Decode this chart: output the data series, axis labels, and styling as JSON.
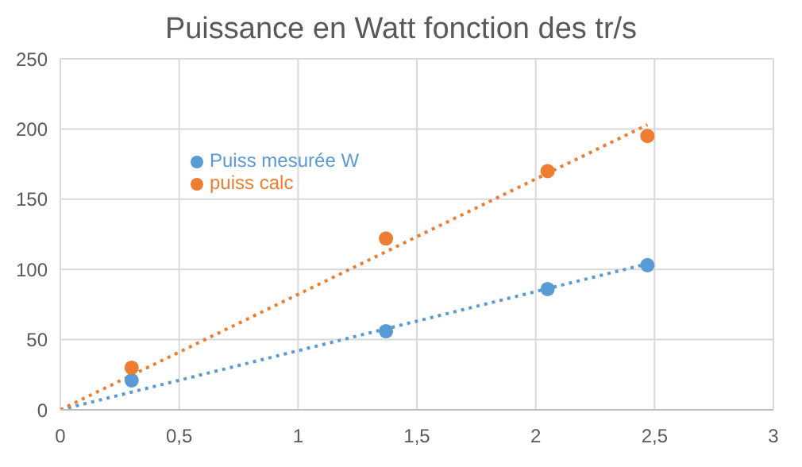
{
  "chart_data": {
    "type": "scatter",
    "title": "Puissance en Watt fonction des tr/s",
    "xlim": [
      0,
      3
    ],
    "xticks": [
      0,
      {
        "value": 0.5,
        "label": "0,5"
      },
      1,
      {
        "value": 1.5,
        "label": "1,5"
      },
      2,
      {
        "value": 2.5,
        "label": "2,5"
      },
      3
    ],
    "ylim": [
      0,
      250
    ],
    "yticks": [
      0,
      50,
      100,
      150,
      200,
      250
    ],
    "grid": true,
    "legend": "top left",
    "series": [
      {
        "name": "Puiss mesurée W",
        "color": "#5b9bd5",
        "marker": "circle",
        "x": [
          0.3,
          1.37,
          2.05,
          2.47
        ],
        "values": [
          21,
          56,
          86,
          103
        ]
      },
      {
        "name": "puiss calc",
        "color": "#ed7d31",
        "marker": "circle",
        "x": [
          0.3,
          1.37,
          2.05,
          2.47
        ],
        "values": [
          30,
          122,
          170,
          195
        ]
      },
      {
        "type": "line",
        "color": "#5b9bd5",
        "line_style": "dotted",
        "marker": "none",
        "x": [
          0,
          2.47
        ],
        "values": [
          0,
          104
        ]
      },
      {
        "type": "line",
        "color": "#ed7d31",
        "line_style": "dotted",
        "marker": "none",
        "x": [
          0,
          2.47
        ],
        "values": [
          0,
          203
        ]
      }
    ]
  }
}
